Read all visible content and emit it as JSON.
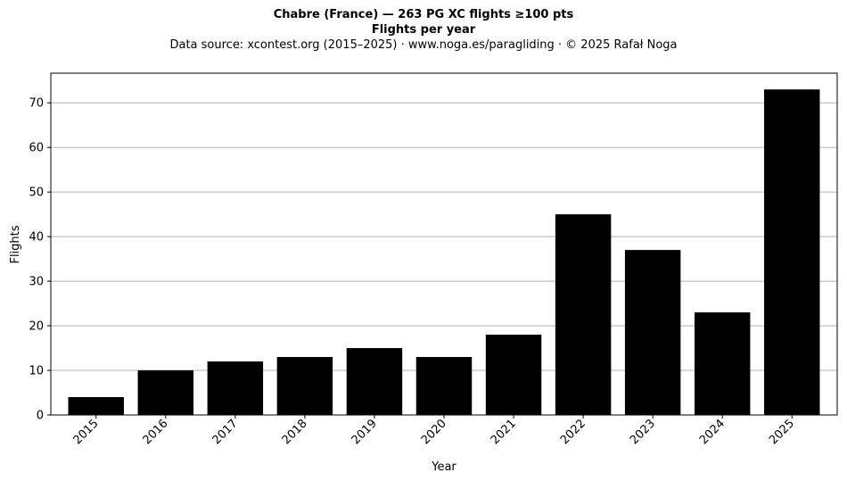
{
  "chart_data": {
    "type": "bar",
    "title": "Chabre (France)  —  263 PG XC flights ≥100 pts",
    "subtitle": "Flights per year",
    "source_note": "Data source: xcontest.org (2015–2025)  ·  www.noga.es/paragliding  ·  © 2025 Rafał Noga",
    "xlabel": "Year",
    "ylabel": "Flights",
    "categories": [
      "2015",
      "2016",
      "2017",
      "2018",
      "2019",
      "2020",
      "2021",
      "2022",
      "2023",
      "2024",
      "2025"
    ],
    "values": [
      4,
      10,
      12,
      13,
      15,
      13,
      18,
      45,
      37,
      23,
      73
    ],
    "ylim": [
      0,
      76.65
    ],
    "yticks": [
      0,
      10,
      20,
      30,
      40,
      50,
      60,
      70
    ],
    "grid": "y",
    "legend": "none",
    "bar_color": "#000000",
    "grid_color": "#b0b0b0"
  }
}
